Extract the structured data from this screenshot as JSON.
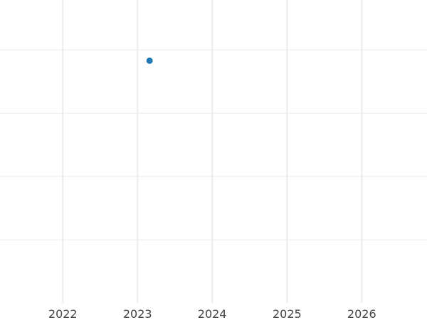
{
  "chart_data": {
    "type": "scatter",
    "title": "",
    "xlabel": "",
    "ylabel": "",
    "x_axis_type": "date",
    "xlim": [
      "2021-02-28",
      "2026-11-16"
    ],
    "ylim": [
      0,
      4.79
    ],
    "x_ticks": [
      "2022",
      "2023",
      "2024",
      "2025",
      "2026"
    ],
    "y_ticks_unlabeled": [
      1,
      2,
      3,
      4
    ],
    "grid": true,
    "legend": "none",
    "points": [
      {
        "x": "2023-03-01",
        "y": 3.83
      }
    ],
    "colors": {
      "point": "#1f77b4",
      "grid": "#ebebeb",
      "tick_text": "#444444"
    }
  }
}
